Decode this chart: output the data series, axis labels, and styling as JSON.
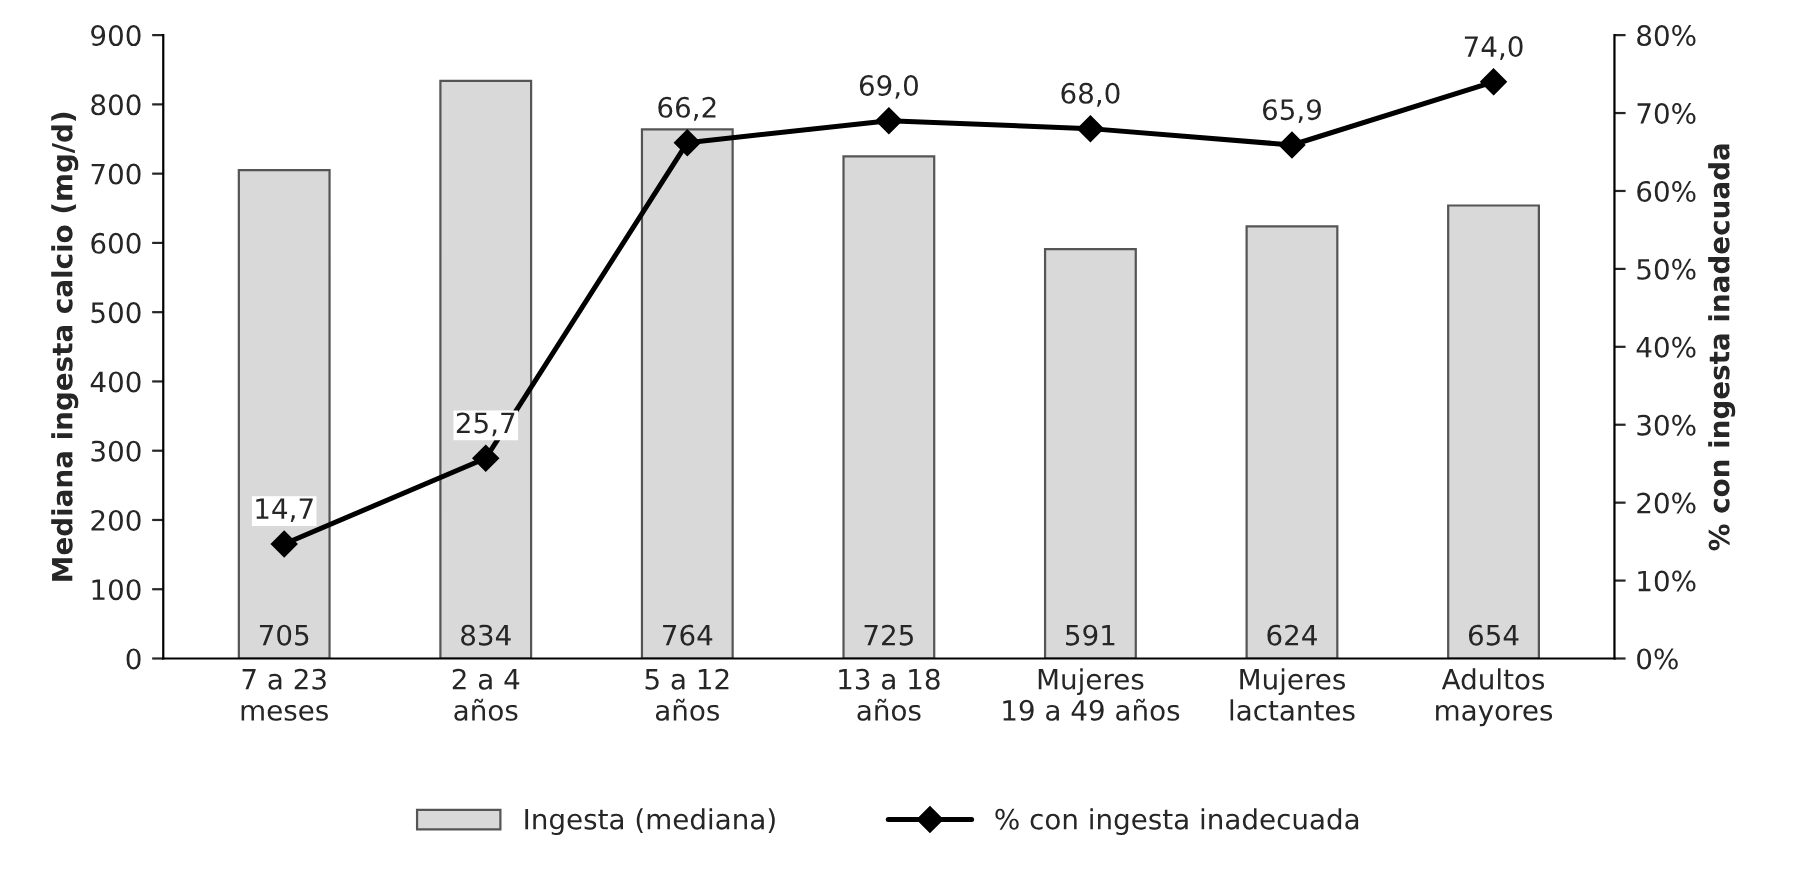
{
  "chart_data": {
    "type": "bar",
    "categories": [
      "7 a 23\nmeses",
      "2 a 4\naños",
      "5 a 12\naños",
      "13 a 18\naños",
      "Mujeres\n19 a 49 años",
      "Mujeres\nlactantes",
      "Adultos\nmayores"
    ],
    "ylabel": "Mediana ingesta calcio (mg/d)",
    "y2label": "% con ingesta inadecuada",
    "ylim": [
      0,
      900
    ],
    "yticks": [
      0,
      100,
      200,
      300,
      400,
      500,
      600,
      700,
      800,
      900
    ],
    "y2lim": [
      0,
      80
    ],
    "y2ticks": [
      {
        "value": 0,
        "label": "0%"
      },
      {
        "value": 10,
        "label": "10%"
      },
      {
        "value": 20,
        "label": "20%"
      },
      {
        "value": 30,
        "label": "30%"
      },
      {
        "value": 40,
        "label": "40%"
      },
      {
        "value": 50,
        "label": "50%"
      },
      {
        "value": 60,
        "label": "60%"
      },
      {
        "value": 70,
        "label": "70%"
      },
      {
        "value": 80,
        "label": "80%"
      }
    ],
    "grid": false,
    "legend": "bottom",
    "series": [
      {
        "name": "Ingesta (mediana)",
        "color": "#d9d9d9",
        "values": [
          705,
          834,
          764,
          725,
          591,
          624,
          654
        ],
        "value_labels": [
          "705",
          "834",
          "764",
          "725",
          "591",
          "624",
          "654"
        ]
      },
      {
        "name": "% con ingesta inadecuada",
        "type": "line",
        "axis": "y2",
        "color": "#000000",
        "marker": "diamond",
        "line_style": "solid",
        "values": [
          14.7,
          25.7,
          66.2,
          69.0,
          68.0,
          65.9,
          74.0
        ],
        "value_labels": [
          "14,7",
          "25,7",
          "66,2",
          "69,0",
          "68,0",
          "65,9",
          "74,0"
        ]
      }
    ]
  }
}
